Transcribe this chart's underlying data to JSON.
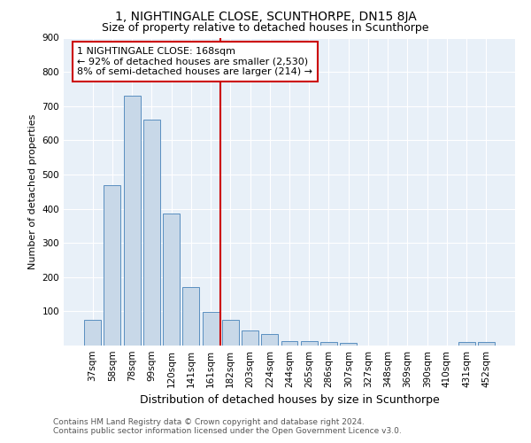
{
  "title": "1, NIGHTINGALE CLOSE, SCUNTHORPE, DN15 8JA",
  "subtitle": "Size of property relative to detached houses in Scunthorpe",
  "xlabel": "Distribution of detached houses by size in Scunthorpe",
  "ylabel": "Number of detached properties",
  "categories": [
    "37sqm",
    "58sqm",
    "78sqm",
    "99sqm",
    "120sqm",
    "141sqm",
    "161sqm",
    "182sqm",
    "203sqm",
    "224sqm",
    "244sqm",
    "265sqm",
    "286sqm",
    "307sqm",
    "327sqm",
    "348sqm",
    "369sqm",
    "390sqm",
    "410sqm",
    "431sqm",
    "452sqm"
  ],
  "values": [
    75,
    470,
    730,
    660,
    385,
    170,
    98,
    75,
    45,
    33,
    14,
    13,
    11,
    8,
    0,
    0,
    0,
    0,
    0,
    10,
    10
  ],
  "bar_color": "#c8d8e8",
  "bar_edge_color": "#5a8fc0",
  "vline_x": 6.5,
  "vline_color": "#cc0000",
  "annotation_lines": [
    "1 NIGHTINGALE CLOSE: 168sqm",
    "← 92% of detached houses are smaller (2,530)",
    "8% of semi-detached houses are larger (214) →"
  ],
  "ylim": [
    0,
    900
  ],
  "yticks": [
    0,
    100,
    200,
    300,
    400,
    500,
    600,
    700,
    800,
    900
  ],
  "footer_line1": "Contains HM Land Registry data © Crown copyright and database right 2024.",
  "footer_line2": "Contains public sector information licensed under the Open Government Licence v3.0.",
  "bg_color": "#e8f0f8",
  "title_fontsize": 10,
  "subtitle_fontsize": 9,
  "ylabel_fontsize": 8,
  "xlabel_fontsize": 9,
  "tick_fontsize": 7.5,
  "annotation_fontsize": 8,
  "footer_fontsize": 6.5
}
